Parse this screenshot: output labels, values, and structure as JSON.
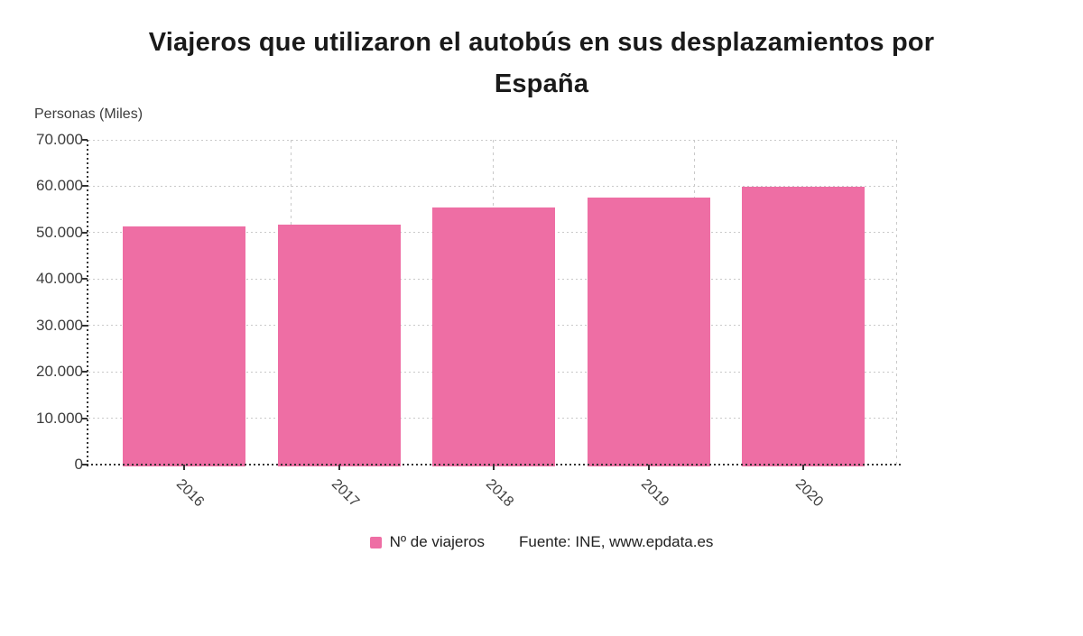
{
  "title": {
    "line1": "Viajeros que utilizaron el autobús en sus desplazamientos por",
    "line2": "España"
  },
  "legend": {
    "label": "Nº de viajeros",
    "source": "Fuente: INE, www.epdata.es"
  },
  "colors": {
    "bar": "#EE6EA4",
    "grid": "#C9C9C9",
    "axis_line": "#333333",
    "axis_text": "#3D3D3D",
    "title_text": "#1A1A1A"
  },
  "chart_data": {
    "type": "bar",
    "title": "Viajeros que utilizaron el autobús en sus desplazamientos por España",
    "categories": [
      "2016",
      "2017",
      "2018",
      "2019",
      "2020"
    ],
    "values": [
      51300,
      51700,
      55500,
      57500,
      59800
    ],
    "series_name": "Nº de viajeros",
    "xlabel": "",
    "ylabel": "Personas (Miles)",
    "ylim": [
      0,
      70000
    ],
    "ytick_interval": 10000,
    "ytick_labels": [
      "0",
      "10.000",
      "20.000",
      "30.000",
      "40.000",
      "50.000",
      "60.000",
      "70.000"
    ],
    "grid": true,
    "legend_position": "bottom",
    "source": "Fuente: INE, www.epdata.es"
  }
}
